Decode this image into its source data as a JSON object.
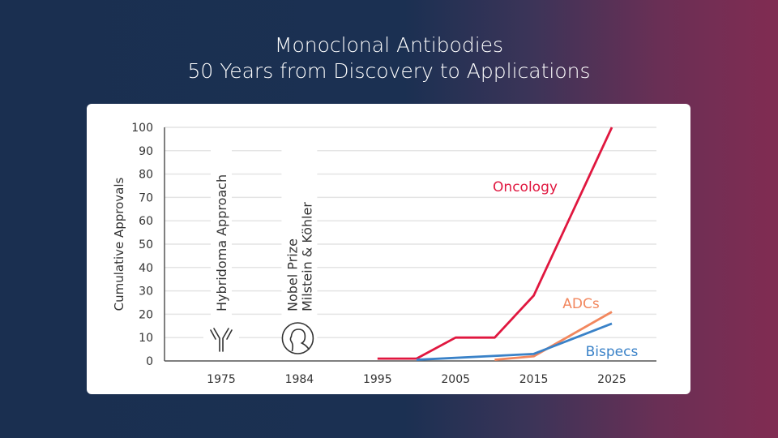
{
  "title": {
    "line1": "Monoclonal Antibodies",
    "line2": "50 Years from Discovery to Applications"
  },
  "chart_data": {
    "type": "line",
    "ylabel": "Cumulative Approvals",
    "xlabel": "",
    "ylim": [
      0,
      100
    ],
    "yticks": [
      "0",
      "10",
      "20",
      "30",
      "40",
      "50",
      "60",
      "70",
      "80",
      "90",
      "100"
    ],
    "xticks": [
      "1975",
      "1984",
      "1995",
      "2005",
      "2015",
      "2025"
    ],
    "grid": true,
    "annotations": [
      {
        "year": "1975",
        "lines": [
          "Hybridoma Approach"
        ],
        "icon": "antibody-icon"
      },
      {
        "year": "1984",
        "lines": [
          "Nobel Prize",
          "Milstein & Köhler"
        ],
        "icon": "nobel-medal-icon"
      }
    ],
    "series": [
      {
        "name": "Oncology",
        "color": "#e0173f",
        "x": [
          1995,
          2000,
          2005,
          2010,
          2015,
          2020,
          2025
        ],
        "y": [
          1,
          1,
          10,
          10,
          28,
          64,
          100
        ]
      },
      {
        "name": "ADCs",
        "color": "#f2875e",
        "x": [
          2010,
          2015,
          2025
        ],
        "y": [
          0.5,
          2,
          21
        ]
      },
      {
        "name": "Bispecs",
        "color": "#3a82c8",
        "x": [
          2000,
          2015,
          2025
        ],
        "y": [
          0.5,
          3,
          16
        ]
      }
    ]
  }
}
